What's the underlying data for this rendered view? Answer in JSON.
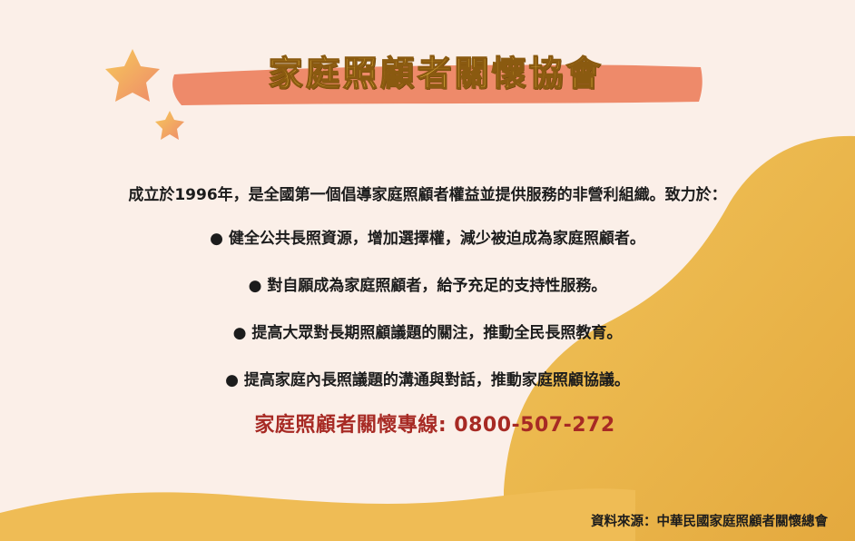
{
  "title": "家庭照顧者關懷協會",
  "intro": "成立於1996年，是全國第一個倡導家庭照顧者權益並提供服務的非營利組織。致力於：",
  "bullet_symbol": "●",
  "bullets": [
    "健全公共長照資源，增加選擇權，減少被迫成為家庭照顧者。",
    "對自願成為家庭照顧者，給予充足的支持性服務。",
    "提高大眾對長期照顧議題的關注，推動全民長照教育。",
    "提高家庭內長照議題的溝通與對話，推動家庭照顧協議。"
  ],
  "hotline": "家庭照顧者關懷專線: 0800-507-272",
  "source": "資料來源：中華民國家庭照顧者關懷總會",
  "colors": {
    "background": "#fbefe8",
    "brush_stroke": "#ee8a6a",
    "gold": "#eab34a",
    "hotline": "#a72a24",
    "title_fill": "#f3c64a"
  },
  "icons": [
    "star-icon",
    "star-icon",
    "bullet-dot-icon"
  ]
}
